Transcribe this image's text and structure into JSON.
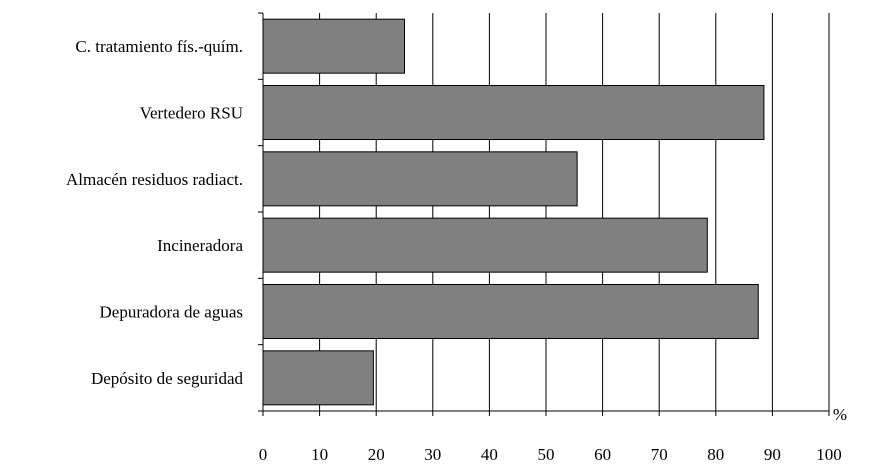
{
  "chart_data": {
    "type": "bar",
    "orientation": "horizontal",
    "categories": [
      "C. tratamiento fís.-quím.",
      "Vertedero RSU",
      "Almacén residuos radiact.",
      "Incineradora",
      "Depuradora de aguas",
      "Depósito de seguridad"
    ],
    "values": [
      25,
      88.5,
      55.5,
      78.5,
      87.5,
      19.5
    ],
    "xlim": [
      0,
      100
    ],
    "xticks": [
      0,
      10,
      20,
      30,
      40,
      50,
      60,
      70,
      80,
      90,
      100
    ],
    "x_unit": "%",
    "title": "",
    "xlabel": "",
    "ylabel": "",
    "grid": "vertical",
    "legend": "none",
    "colors": {
      "bar_fill": "#808080",
      "bar_stroke": "#000000",
      "grid": "#000000",
      "background": "#ffffff"
    }
  }
}
